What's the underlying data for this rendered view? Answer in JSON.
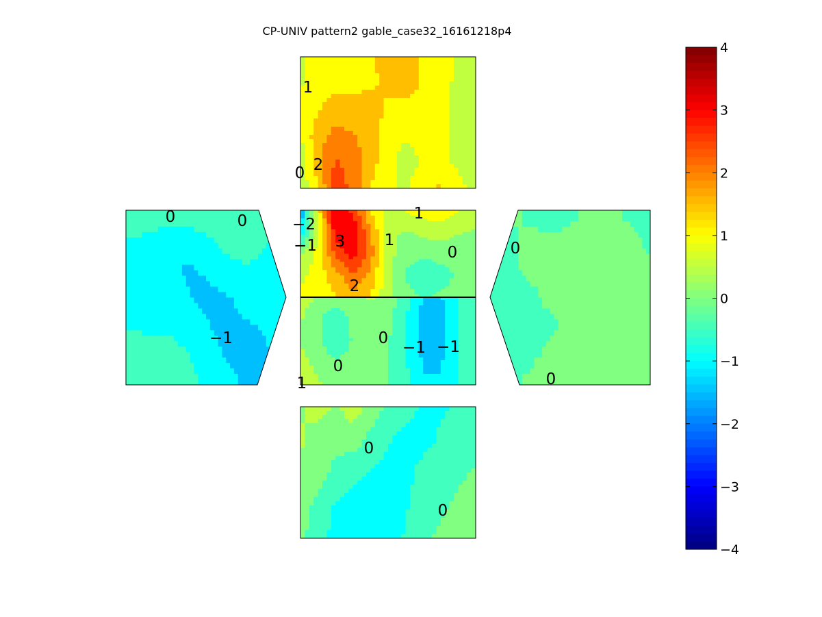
{
  "chart_data": {
    "type": "heatmap",
    "title": "CP-UNIV pattern2 gable_case32_16161218p4",
    "colorbar": {
      "min": -4,
      "max": 4,
      "ticks": [
        4,
        3,
        2,
        1,
        0,
        -1,
        -2,
        -3,
        -4
      ],
      "tick_labels": [
        "4",
        "3",
        "2",
        "1",
        "0",
        "−1",
        "−2",
        "−3",
        "−4"
      ],
      "colormap": "jet",
      "levels": 64
    },
    "panels": [
      {
        "name": "roof-top-panel",
        "rows": [
          [
            0.6,
            1.0,
            1.1,
            1.1,
            1.2,
            1.4,
            1.6,
            1.2,
            1.0,
            0.6,
            0.4
          ],
          [
            0.7,
            1.0,
            1.1,
            1.1,
            1.2,
            1.3,
            1.5,
            1.2,
            1.0,
            0.6,
            0.4
          ],
          [
            0.8,
            1.2,
            1.5,
            1.5,
            1.4,
            1.2,
            1.1,
            1.0,
            0.9,
            0.6,
            0.4
          ],
          [
            0.7,
            1.6,
            1.9,
            1.8,
            1.5,
            1.0,
            0.8,
            1.0,
            0.9,
            0.6,
            0.4
          ],
          [
            0.5,
            1.6,
            2.3,
            2.0,
            1.5,
            0.9,
            0.5,
            0.8,
            1.0,
            0.6,
            0.4
          ],
          [
            0.4,
            1.2,
            2.6,
            2.1,
            1.2,
            0.8,
            0.7,
            1.1,
            1.3,
            1.0,
            0.5
          ]
        ],
        "contour_labels": [
          "1",
          "0",
          "2"
        ]
      },
      {
        "name": "roof-bottom-panel",
        "rows": [
          [
            -1.8,
            1.0,
            3.2,
            2.6,
            1.2,
            0.6,
            0.8,
            1.0,
            1.0,
            0.8,
            0.6
          ],
          [
            -1.2,
            0.8,
            3.0,
            3.3,
            1.8,
            0.4,
            0.2,
            0.4,
            0.5,
            0.3,
            0.2
          ],
          [
            0.2,
            0.9,
            2.4,
            3.0,
            2.0,
            0.5,
            -0.1,
            -0.2,
            -0.1,
            -0.1,
            -0.2
          ],
          [
            0.6,
            1.0,
            1.5,
            2.2,
            1.6,
            0.4,
            -0.3,
            -0.5,
            -0.4,
            -0.2,
            -0.2
          ],
          [
            0.9,
            1.0,
            1.2,
            1.6,
            1.2,
            0.4,
            -0.1,
            -0.3,
            -0.2,
            -0.1,
            -0.1
          ]
        ],
        "contour_labels": [
          "1",
          "−2",
          "−1",
          "3",
          "1",
          "0",
          "2"
        ]
      },
      {
        "name": "wall-center-panel",
        "rows": [
          [
            0.5,
            0.2,
            0.0,
            0.2,
            0.3,
            0.1,
            -0.6,
            -1.3,
            -1.3,
            -0.8,
            -0.3
          ],
          [
            0.3,
            -0.2,
            -0.6,
            -0.1,
            0.1,
            -0.1,
            -0.7,
            -1.4,
            -1.4,
            -0.8,
            -0.2
          ],
          [
            0.2,
            -0.1,
            -0.7,
            -0.2,
            0.0,
            -0.2,
            -0.8,
            -1.4,
            -1.4,
            -0.8,
            -0.2
          ],
          [
            0.4,
            0.1,
            -0.2,
            0.0,
            0.0,
            -0.2,
            -0.7,
            -1.3,
            -1.3,
            -0.8,
            -0.2
          ],
          [
            0.6,
            0.3,
            0.1,
            0.2,
            0.1,
            -0.2,
            -0.6,
            -1.2,
            -1.2,
            -0.8,
            -0.2
          ]
        ],
        "contour_labels": [
          "0",
          "−1",
          "−1",
          "0",
          "1"
        ]
      },
      {
        "name": "wall-bottom-panel",
        "rows": [
          [
            0.2,
            0.4,
            0.2,
            0.5,
            0.1,
            -0.4,
            -0.6,
            -0.8,
            -0.8,
            -0.7,
            -0.5
          ],
          [
            0.3,
            0.1,
            -0.1,
            0.0,
            -0.4,
            -0.7,
            -0.9,
            -0.9,
            -0.7,
            -0.6,
            -0.4
          ],
          [
            0.2,
            0.0,
            -0.4,
            -0.6,
            -0.8,
            -0.9,
            -0.9,
            -0.6,
            -0.5,
            -0.3,
            -0.2
          ],
          [
            0.0,
            -0.4,
            -0.8,
            -0.9,
            -1.0,
            -1.0,
            -0.8,
            -0.5,
            -0.3,
            -0.2,
            -0.2
          ],
          [
            -0.1,
            -0.6,
            -0.9,
            -1.0,
            -1.0,
            -1.0,
            -0.7,
            -0.3,
            -0.2,
            -0.1,
            -0.1
          ]
        ],
        "contour_labels": [
          "0",
          "0"
        ]
      },
      {
        "name": "gable-left-panel",
        "rows": [
          [
            -0.4,
            -0.5,
            -0.6,
            -0.5,
            -0.4,
            -0.4,
            -0.5,
            -0.6,
            -0.3
          ],
          [
            -0.8,
            -0.8,
            -0.9,
            -1.0,
            -0.8,
            -0.6,
            -0.5,
            -0.7,
            -0.8
          ],
          [
            -0.9,
            -0.9,
            -1.0,
            -1.3,
            -1.2,
            -0.9,
            -0.8,
            -0.9,
            -1.0
          ],
          [
            -0.9,
            -0.9,
            -0.9,
            -1.2,
            -1.4,
            -1.3,
            -1.1,
            -1.1,
            -1.0
          ],
          [
            -0.8,
            -0.8,
            -0.8,
            -0.9,
            -1.2,
            -1.4,
            -1.3,
            -1.2,
            -1.1
          ],
          [
            -0.5,
            -0.6,
            -0.6,
            -0.7,
            -1.0,
            -1.3,
            -1.4,
            -1.3,
            -1.2
          ],
          [
            -0.3,
            -0.4,
            -0.5,
            -0.6,
            -0.8,
            -1.1,
            -1.3,
            -1.3,
            -1.3
          ]
        ],
        "contour_labels": [
          "0",
          "0",
          "−1"
        ]
      },
      {
        "name": "gable-right-panel",
        "rows": [
          [
            -0.4,
            -0.2,
            -0.3,
            -0.4,
            -0.3,
            -0.2,
            -0.2,
            -0.3,
            -0.3
          ],
          [
            -0.6,
            -0.3,
            -0.2,
            -0.2,
            -0.2,
            -0.2,
            -0.2,
            -0.2,
            -0.3
          ],
          [
            -0.4,
            -0.3,
            -0.2,
            -0.2,
            -0.2,
            -0.1,
            -0.2,
            -0.2,
            -0.2
          ],
          [
            -0.3,
            -0.3,
            -0.3,
            -0.2,
            -0.2,
            -0.1,
            -0.1,
            -0.1,
            -0.1
          ],
          [
            -0.3,
            -0.3,
            -0.3,
            -0.3,
            -0.2,
            -0.1,
            0.0,
            0.1,
            0.1
          ],
          [
            -0.3,
            -0.3,
            -0.3,
            -0.2,
            0.0,
            0.1,
            0.1,
            0.1,
            0.1
          ],
          [
            -0.3,
            -0.3,
            -0.2,
            0.0,
            0.1,
            0.1,
            0.1,
            0.1,
            0.0
          ]
        ],
        "contour_labels": [
          "0",
          "0"
        ]
      }
    ]
  }
}
